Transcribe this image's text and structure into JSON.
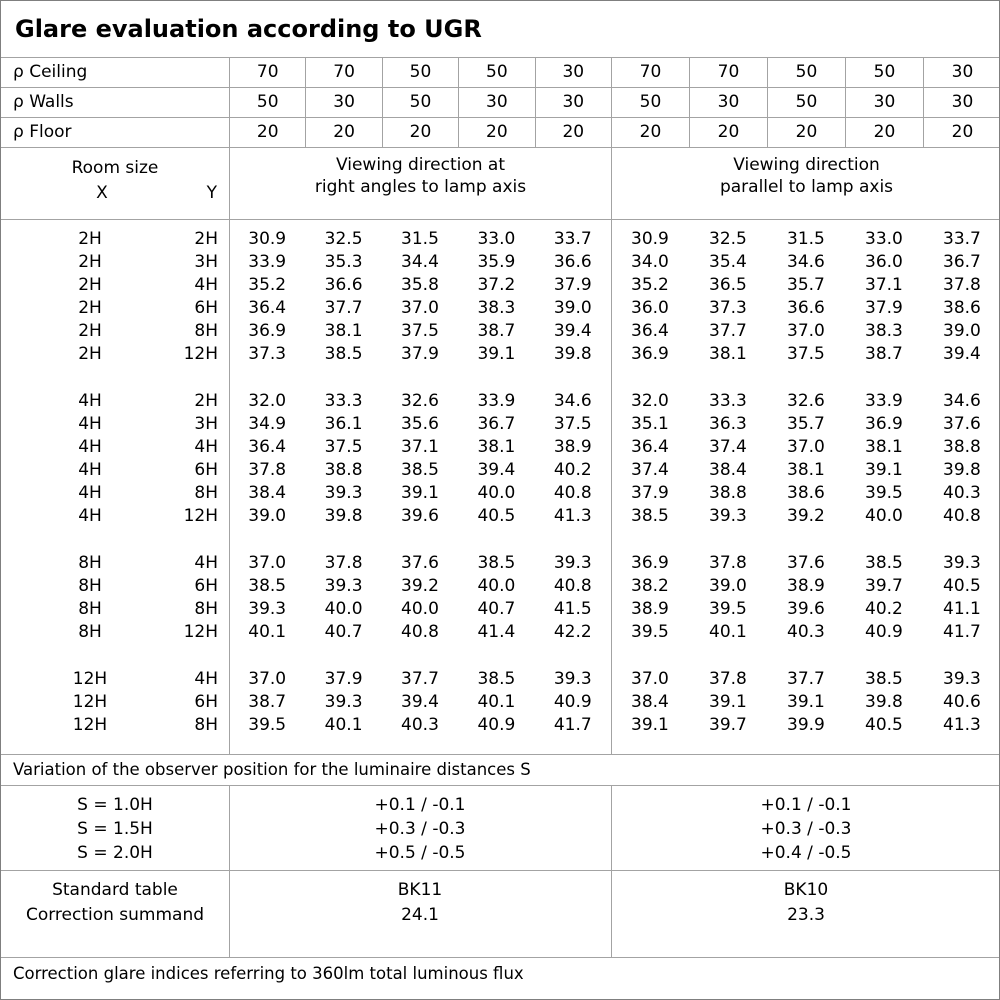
{
  "title": "Glare evaluation according to UGR",
  "reflectance_rows": [
    {
      "label": "ρ Ceiling",
      "values": [
        "70",
        "70",
        "50",
        "50",
        "30",
        "70",
        "70",
        "50",
        "50",
        "30"
      ]
    },
    {
      "label": "ρ Walls",
      "values": [
        "50",
        "30",
        "50",
        "30",
        "30",
        "50",
        "30",
        "50",
        "30",
        "30"
      ]
    },
    {
      "label": "ρ Floor",
      "values": [
        "20",
        "20",
        "20",
        "20",
        "20",
        "20",
        "20",
        "20",
        "20",
        "20"
      ]
    }
  ],
  "header": {
    "room_size_label": "Room size",
    "x_label": "X",
    "y_label": "Y",
    "group1_line1": "Viewing direction at",
    "group1_line2": "right angles to lamp axis",
    "group2_line1": "Viewing direction",
    "group2_line2": "parallel to lamp axis"
  },
  "room_groups": [
    {
      "rows": [
        {
          "x": "2H",
          "y": "2H",
          "values": [
            "30.9",
            "32.5",
            "31.5",
            "33.0",
            "33.7",
            "30.9",
            "32.5",
            "31.5",
            "33.0",
            "33.7"
          ]
        },
        {
          "x": "2H",
          "y": "3H",
          "values": [
            "33.9",
            "35.3",
            "34.4",
            "35.9",
            "36.6",
            "34.0",
            "35.4",
            "34.6",
            "36.0",
            "36.7"
          ]
        },
        {
          "x": "2H",
          "y": "4H",
          "values": [
            "35.2",
            "36.6",
            "35.8",
            "37.2",
            "37.9",
            "35.2",
            "36.5",
            "35.7",
            "37.1",
            "37.8"
          ]
        },
        {
          "x": "2H",
          "y": "6H",
          "values": [
            "36.4",
            "37.7",
            "37.0",
            "38.3",
            "39.0",
            "36.0",
            "37.3",
            "36.6",
            "37.9",
            "38.6"
          ]
        },
        {
          "x": "2H",
          "y": "8H",
          "values": [
            "36.9",
            "38.1",
            "37.5",
            "38.7",
            "39.4",
            "36.4",
            "37.7",
            "37.0",
            "38.3",
            "39.0"
          ]
        },
        {
          "x": "2H",
          "y": "12H",
          "values": [
            "37.3",
            "38.5",
            "37.9",
            "39.1",
            "39.8",
            "36.9",
            "38.1",
            "37.5",
            "38.7",
            "39.4"
          ]
        }
      ]
    },
    {
      "rows": [
        {
          "x": "4H",
          "y": "2H",
          "values": [
            "32.0",
            "33.3",
            "32.6",
            "33.9",
            "34.6",
            "32.0",
            "33.3",
            "32.6",
            "33.9",
            "34.6"
          ]
        },
        {
          "x": "4H",
          "y": "3H",
          "values": [
            "34.9",
            "36.1",
            "35.6",
            "36.7",
            "37.5",
            "35.1",
            "36.3",
            "35.7",
            "36.9",
            "37.6"
          ]
        },
        {
          "x": "4H",
          "y": "4H",
          "values": [
            "36.4",
            "37.5",
            "37.1",
            "38.1",
            "38.9",
            "36.4",
            "37.4",
            "37.0",
            "38.1",
            "38.8"
          ]
        },
        {
          "x": "4H",
          "y": "6H",
          "values": [
            "37.8",
            "38.8",
            "38.5",
            "39.4",
            "40.2",
            "37.4",
            "38.4",
            "38.1",
            "39.1",
            "39.8"
          ]
        },
        {
          "x": "4H",
          "y": "8H",
          "values": [
            "38.4",
            "39.3",
            "39.1",
            "40.0",
            "40.8",
            "37.9",
            "38.8",
            "38.6",
            "39.5",
            "40.3"
          ]
        },
        {
          "x": "4H",
          "y": "12H",
          "values": [
            "39.0",
            "39.8",
            "39.6",
            "40.5",
            "41.3",
            "38.5",
            "39.3",
            "39.2",
            "40.0",
            "40.8"
          ]
        }
      ]
    },
    {
      "rows": [
        {
          "x": "8H",
          "y": "4H",
          "values": [
            "37.0",
            "37.8",
            "37.6",
            "38.5",
            "39.3",
            "36.9",
            "37.8",
            "37.6",
            "38.5",
            "39.3"
          ]
        },
        {
          "x": "8H",
          "y": "6H",
          "values": [
            "38.5",
            "39.3",
            "39.2",
            "40.0",
            "40.8",
            "38.2",
            "39.0",
            "38.9",
            "39.7",
            "40.5"
          ]
        },
        {
          "x": "8H",
          "y": "8H",
          "values": [
            "39.3",
            "40.0",
            "40.0",
            "40.7",
            "41.5",
            "38.9",
            "39.5",
            "39.6",
            "40.2",
            "41.1"
          ]
        },
        {
          "x": "8H",
          "y": "12H",
          "values": [
            "40.1",
            "40.7",
            "40.8",
            "41.4",
            "42.2",
            "39.5",
            "40.1",
            "40.3",
            "40.9",
            "41.7"
          ]
        }
      ]
    },
    {
      "rows": [
        {
          "x": "12H",
          "y": "4H",
          "values": [
            "37.0",
            "37.9",
            "37.7",
            "38.5",
            "39.3",
            "37.0",
            "37.8",
            "37.7",
            "38.5",
            "39.3"
          ]
        },
        {
          "x": "12H",
          "y": "6H",
          "values": [
            "38.7",
            "39.3",
            "39.4",
            "40.1",
            "40.9",
            "38.4",
            "39.1",
            "39.1",
            "39.8",
            "40.6"
          ]
        },
        {
          "x": "12H",
          "y": "8H",
          "values": [
            "39.5",
            "40.1",
            "40.3",
            "40.9",
            "41.7",
            "39.1",
            "39.7",
            "39.9",
            "40.5",
            "41.3"
          ]
        }
      ]
    }
  ],
  "variation_note": "Variation of the observer position for the luminaire distances S",
  "s_rows": [
    {
      "label": "S = 1.0H",
      "group1": "+0.1 / -0.1",
      "group2": "+0.1 / -0.1"
    },
    {
      "label": "S = 1.5H",
      "group1": "+0.3 / -0.3",
      "group2": "+0.3 / -0.3"
    },
    {
      "label": "S = 2.0H",
      "group1": "+0.5 / -0.5",
      "group2": "+0.4 / -0.5"
    }
  ],
  "summary_rows": [
    {
      "label": "Standard table",
      "group1": "BK11",
      "group2": "BK10"
    },
    {
      "label": "Correction summand",
      "group1": "24.1",
      "group2": "23.3"
    }
  ],
  "footer_note": "Correction glare indices referring to 360lm total luminous flux",
  "colors": {
    "grid_line": "#a3a3a3",
    "outer_border": "#7f7f7f",
    "text": "#000000",
    "background": "#ffffff"
  }
}
